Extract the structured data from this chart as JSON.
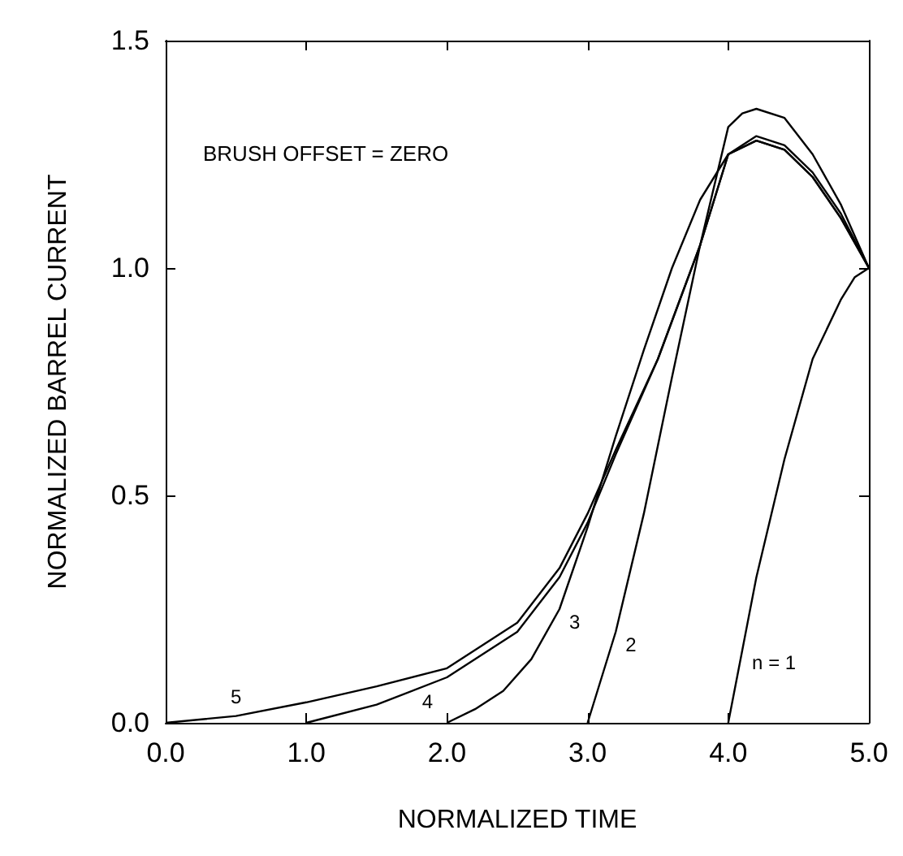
{
  "chart_data": {
    "type": "line",
    "xlabel": "NORMALIZED TIME",
    "ylabel": "NORMALIZED BARREL CURRENT",
    "annotations": [
      "BRUSH OFFSET = ZERO"
    ],
    "xlim": [
      0,
      5
    ],
    "xticks": [
      {
        "value": 0,
        "label": "0.0"
      },
      {
        "value": 1,
        "label": "1.0"
      },
      {
        "value": 2,
        "label": "2.0"
      },
      {
        "value": 3,
        "label": "3.0"
      },
      {
        "value": 4,
        "label": "4.0"
      },
      {
        "value": 5,
        "label": "5.0"
      }
    ],
    "ylim": [
      0,
      1.5
    ],
    "yticks": [
      {
        "value": 0,
        "label": "0.0"
      },
      {
        "value": 0.5,
        "label": "0.5"
      },
      {
        "value": 1,
        "label": "1.0"
      },
      {
        "value": 1.5,
        "label": "1.5"
      }
    ],
    "grid": false,
    "legend": false,
    "marker": "none",
    "line_style": "solid",
    "series": [
      {
        "name": "n = 1",
        "color": "#000000",
        "x": [
          4,
          4.1,
          4.2,
          4.4,
          4.6,
          4.8,
          4.9,
          5
        ],
        "values": [
          0,
          0.16,
          0.32,
          0.58,
          0.8,
          0.93,
          0.98,
          1
        ]
      },
      {
        "name": "2",
        "color": "#000000",
        "x": [
          3,
          3.2,
          3.4,
          3.6,
          3.8,
          4.0,
          4.1,
          4.2,
          4.4,
          4.6,
          4.8,
          5
        ],
        "values": [
          0,
          0.2,
          0.46,
          0.76,
          1.05,
          1.31,
          1.34,
          1.35,
          1.33,
          1.25,
          1.14,
          1
        ]
      },
      {
        "name": "3",
        "color": "#000000",
        "x": [
          2,
          2.2,
          2.4,
          2.6,
          2.8,
          3.0,
          3.2,
          3.4,
          3.6,
          3.8,
          4.0,
          4.2,
          4.4,
          4.6,
          4.8,
          5
        ],
        "values": [
          0,
          0.03,
          0.07,
          0.14,
          0.25,
          0.43,
          0.63,
          0.82,
          1.0,
          1.15,
          1.25,
          1.28,
          1.26,
          1.2,
          1.11,
          1
        ]
      },
      {
        "name": "4",
        "color": "#000000",
        "x": [
          1,
          1.5,
          2,
          2.5,
          2.8,
          3.0,
          3.2,
          3.5,
          3.8,
          4.0,
          4.2,
          4.4,
          4.6,
          4.8,
          5
        ],
        "values": [
          0,
          0.04,
          0.1,
          0.2,
          0.32,
          0.44,
          0.59,
          0.8,
          1.05,
          1.25,
          1.29,
          1.27,
          1.21,
          1.12,
          1
        ]
      },
      {
        "name": "5",
        "color": "#000000",
        "x": [
          0,
          0.5,
          1,
          1.5,
          2,
          2.5,
          2.8,
          3.0,
          3.2,
          3.5,
          3.8,
          4.0,
          4.2,
          4.4,
          4.6,
          4.8,
          5
        ],
        "values": [
          0,
          0.015,
          0.045,
          0.08,
          0.12,
          0.22,
          0.34,
          0.46,
          0.6,
          0.8,
          1.05,
          1.25,
          1.28,
          1.26,
          1.2,
          1.11,
          1
        ]
      }
    ]
  }
}
